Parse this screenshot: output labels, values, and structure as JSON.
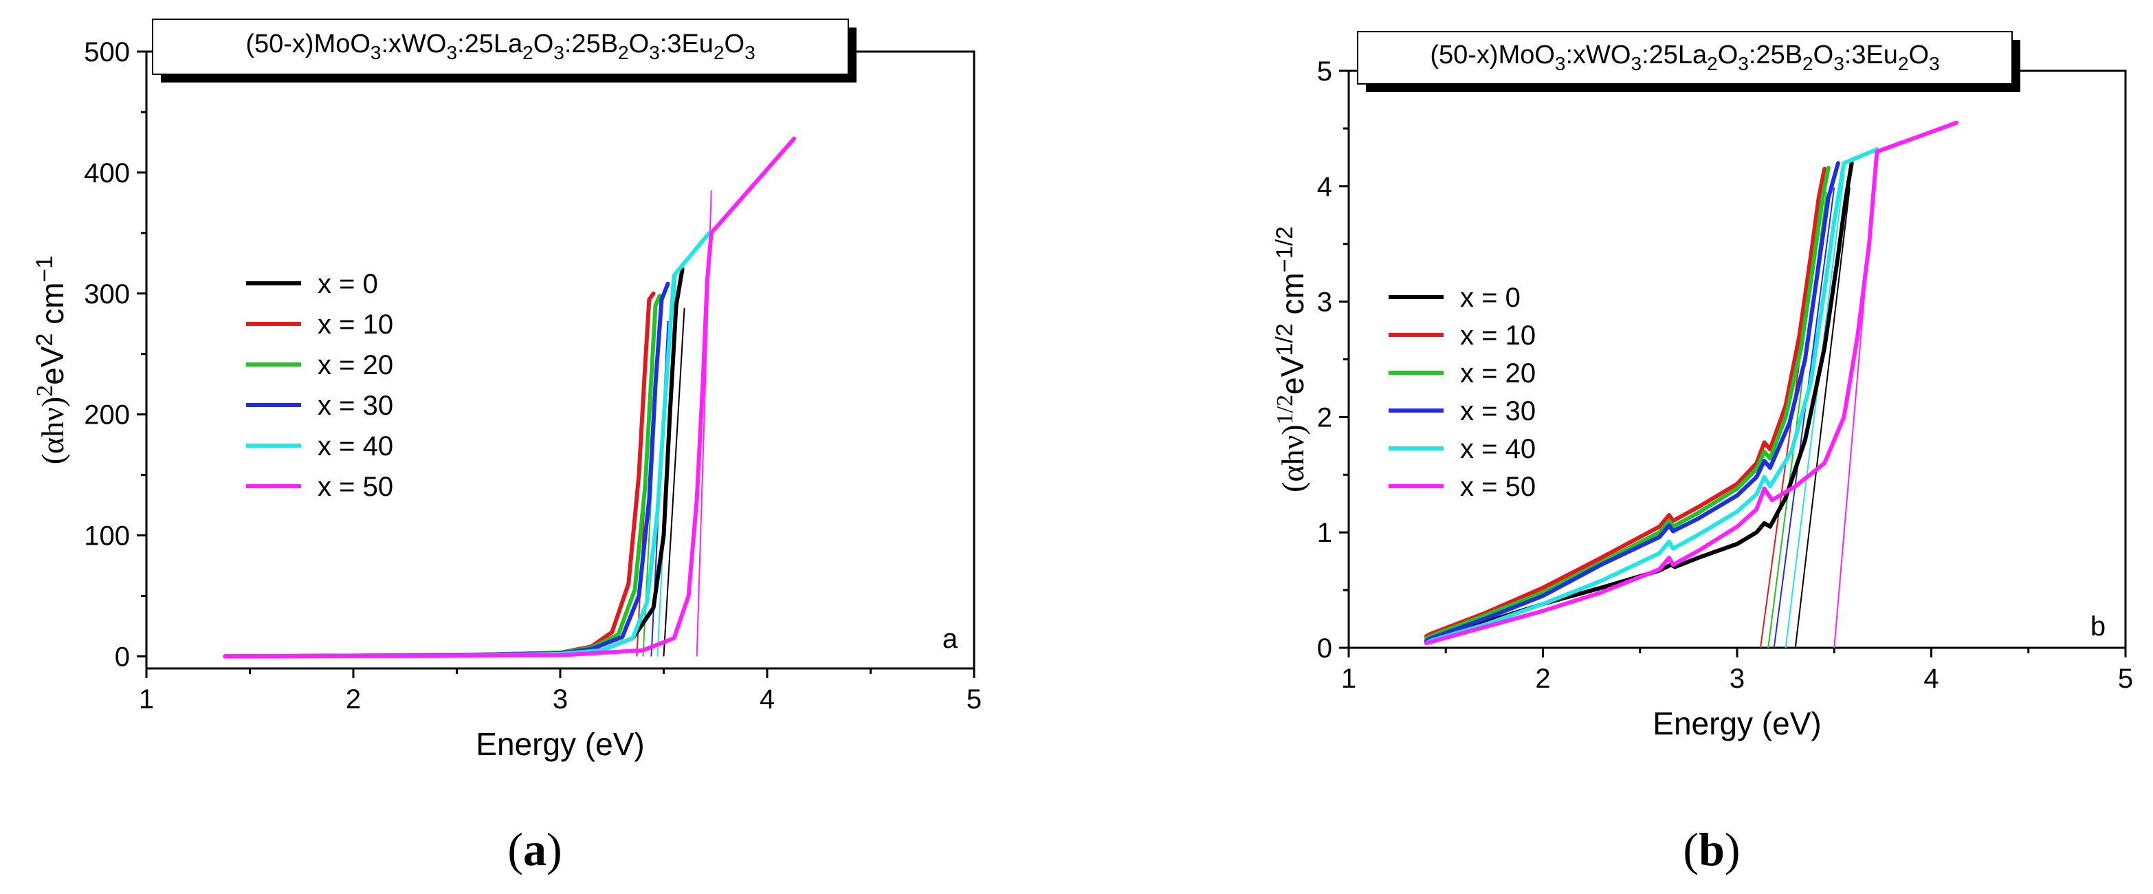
{
  "panels": [
    {
      "id": "a",
      "type": "line",
      "title": "(50-x)MoO3:xWO3:25La2O3:25B2O3:3Eu2O3",
      "title_parts": [
        "(50-x)MoO",
        "3",
        ":xWO",
        "3",
        ":25La",
        "2",
        "O",
        "3",
        ":25B",
        "2",
        "O",
        "3",
        ":3Eu",
        "2",
        "O",
        "3"
      ],
      "xlabel": "Energy (eV)",
      "ylabel_base": "(αhν)",
      "ylabel_exp": "2",
      "ylabel_unit": "eV",
      "ylabel_unit_exp": "2",
      "ylabel_cm": "cm",
      "ylabel_cm_exp": "−1",
      "xlim": [
        1,
        5
      ],
      "ylim": [
        -10,
        500
      ],
      "xticks": [
        1,
        2,
        3,
        4,
        5
      ],
      "yticks": [
        0,
        100,
        200,
        300,
        400,
        500
      ],
      "panel_letter": "a",
      "caption_letter": "a",
      "series": [
        {
          "name": "x = 0",
          "color": "#000000",
          "x": [
            1.38,
            2.5,
            3.0,
            3.2,
            3.35,
            3.45,
            3.5,
            3.53,
            3.56,
            3.59
          ],
          "y": [
            0,
            0.5,
            2,
            5,
            15,
            40,
            100,
            200,
            290,
            320
          ]
        },
        {
          "name": "x = 10",
          "color": "#e31a1c",
          "x": [
            1.38,
            2.5,
            3.0,
            3.15,
            3.25,
            3.33,
            3.38,
            3.41,
            3.43,
            3.45
          ],
          "y": [
            0,
            1,
            3,
            8,
            20,
            60,
            150,
            240,
            295,
            300
          ]
        },
        {
          "name": "x = 20",
          "color": "#22c322",
          "x": [
            1.38,
            2.5,
            3.0,
            3.15,
            3.28,
            3.36,
            3.41,
            3.44,
            3.46,
            3.48
          ],
          "y": [
            0,
            1,
            3,
            7,
            18,
            55,
            140,
            230,
            290,
            298
          ]
        },
        {
          "name": "x = 30",
          "color": "#1f2ee0",
          "x": [
            1.38,
            2.5,
            3.0,
            3.15,
            3.3,
            3.38,
            3.43,
            3.46,
            3.49,
            3.52
          ],
          "y": [
            0,
            1,
            2.5,
            6,
            16,
            50,
            130,
            225,
            295,
            308
          ]
        },
        {
          "name": "x = 40",
          "color": "#22e6e6",
          "x": [
            1.38,
            2.5,
            3.0,
            3.2,
            3.35,
            3.42,
            3.47,
            3.51,
            3.55,
            3.72
          ],
          "y": [
            0,
            0.5,
            2,
            5,
            15,
            45,
            120,
            220,
            315,
            350
          ]
        },
        {
          "name": "x = 50",
          "color": "#ff22ff",
          "x": [
            1.38,
            2.5,
            3.0,
            3.4,
            3.55,
            3.62,
            3.66,
            3.69,
            3.71,
            3.73,
            4.13
          ],
          "y": [
            0,
            0.5,
            1,
            5,
            15,
            50,
            130,
            230,
            310,
            350,
            428
          ]
        }
      ],
      "fit_lines": [
        {
          "color": "#000000",
          "x": [
            3.5,
            3.6
          ]
        },
        {
          "color": "#e31a1c",
          "x": [
            3.37,
            3.45
          ]
        },
        {
          "color": "#22c322",
          "x": [
            3.4,
            3.48
          ]
        },
        {
          "color": "#1f2ee0",
          "x": [
            3.44,
            3.52
          ]
        },
        {
          "color": "#22e6e6",
          "x": [
            3.47,
            3.56
          ]
        },
        {
          "color": "#ff22ff",
          "x": [
            3.66,
            3.73
          ]
        }
      ]
    },
    {
      "id": "b",
      "type": "line",
      "title": "(50-x)MoO3:xWO3:25La2O3:25B2O3:3Eu2O3",
      "title_parts": [
        "(50-x)MoO",
        "3",
        ":xWO",
        "3",
        ":25La",
        "2",
        "O",
        "3",
        ":25B",
        "2",
        "O",
        "3",
        ":3Eu",
        "2",
        "O",
        "3"
      ],
      "xlabel": "Energy (eV)",
      "ylabel_base": "(αhν)",
      "ylabel_exp": "1/2",
      "ylabel_unit": "eV",
      "ylabel_unit_exp": "1/2",
      "ylabel_cm": "cm",
      "ylabel_cm_exp": "−1/2",
      "xlim": [
        1,
        5
      ],
      "ylim": [
        0,
        5
      ],
      "xticks": [
        1,
        2,
        3,
        4,
        5
      ],
      "yticks": [
        0,
        1,
        2,
        3,
        4,
        5
      ],
      "panel_letter": "b",
      "caption_letter": "b",
      "series": [
        {
          "name": "x = 0",
          "color": "#000000",
          "x": [
            1.4,
            1.42,
            1.7,
            2.0,
            2.3,
            2.6,
            2.66,
            2.68,
            2.8,
            3.0,
            3.1,
            3.14,
            3.17,
            3.25,
            3.35,
            3.45,
            3.52,
            3.56,
            3.59
          ],
          "y": [
            0.05,
            0.08,
            0.22,
            0.38,
            0.52,
            0.67,
            0.72,
            0.7,
            0.78,
            0.9,
            1.0,
            1.08,
            1.05,
            1.3,
            1.8,
            2.6,
            3.4,
            3.9,
            4.2
          ]
        },
        {
          "name": "x = 10",
          "color": "#e31a1c",
          "x": [
            1.4,
            1.42,
            1.7,
            2.0,
            2.3,
            2.6,
            2.65,
            2.67,
            2.8,
            3.0,
            3.1,
            3.14,
            3.17,
            3.25,
            3.32,
            3.38,
            3.42,
            3.45
          ],
          "y": [
            0.1,
            0.12,
            0.3,
            0.52,
            0.78,
            1.05,
            1.15,
            1.1,
            1.22,
            1.42,
            1.6,
            1.78,
            1.72,
            2.1,
            2.7,
            3.4,
            3.9,
            4.15
          ]
        },
        {
          "name": "x = 20",
          "color": "#22c322",
          "x": [
            1.4,
            1.42,
            1.7,
            2.0,
            2.3,
            2.6,
            2.65,
            2.67,
            2.8,
            3.0,
            3.1,
            3.14,
            3.17,
            3.25,
            3.33,
            3.39,
            3.44,
            3.47
          ],
          "y": [
            0.08,
            0.1,
            0.28,
            0.48,
            0.74,
            1.0,
            1.1,
            1.05,
            1.17,
            1.38,
            1.55,
            1.7,
            1.64,
            2.0,
            2.6,
            3.3,
            3.9,
            4.16
          ]
        },
        {
          "name": "x = 30",
          "color": "#1f2ee0",
          "x": [
            1.4,
            1.42,
            1.7,
            2.0,
            2.3,
            2.6,
            2.65,
            2.67,
            2.8,
            3.0,
            3.1,
            3.14,
            3.17,
            3.27,
            3.35,
            3.41,
            3.47,
            3.52
          ],
          "y": [
            0.06,
            0.08,
            0.25,
            0.45,
            0.72,
            0.96,
            1.06,
            1.01,
            1.12,
            1.32,
            1.48,
            1.62,
            1.56,
            1.95,
            2.5,
            3.2,
            3.9,
            4.2
          ]
        },
        {
          "name": "x = 40",
          "color": "#22e6e6",
          "x": [
            1.4,
            1.42,
            1.7,
            2.0,
            2.3,
            2.6,
            2.65,
            2.67,
            2.8,
            3.0,
            3.1,
            3.14,
            3.17,
            3.28,
            3.38,
            3.45,
            3.5,
            3.55,
            3.72
          ],
          "y": [
            0.04,
            0.06,
            0.2,
            0.38,
            0.58,
            0.82,
            0.92,
            0.86,
            0.98,
            1.18,
            1.33,
            1.48,
            1.4,
            1.7,
            2.3,
            3.1,
            3.7,
            4.2,
            4.32
          ]
        },
        {
          "name": "x = 50",
          "color": "#ff22ff",
          "x": [
            1.4,
            1.42,
            1.7,
            2.0,
            2.3,
            2.6,
            2.65,
            2.67,
            2.8,
            3.0,
            3.1,
            3.14,
            3.18,
            3.3,
            3.45,
            3.55,
            3.62,
            3.68,
            3.72,
            4.13
          ],
          "y": [
            0.04,
            0.05,
            0.18,
            0.32,
            0.48,
            0.68,
            0.78,
            0.72,
            0.84,
            1.05,
            1.2,
            1.38,
            1.28,
            1.4,
            1.6,
            2.0,
            2.7,
            3.5,
            4.3,
            4.55
          ]
        }
      ],
      "fit_lines": [
        {
          "color": "#000000",
          "x": [
            3.3,
            3.58
          ]
        },
        {
          "color": "#e31a1c",
          "x": [
            3.12,
            3.44
          ]
        },
        {
          "color": "#22c322",
          "x": [
            3.16,
            3.46
          ]
        },
        {
          "color": "#1f2ee0",
          "x": [
            3.19,
            3.5
          ]
        },
        {
          "color": "#22e6e6",
          "x": [
            3.25,
            3.55
          ]
        },
        {
          "color": "#ff22ff",
          "x": [
            3.5,
            3.72
          ]
        }
      ]
    }
  ]
}
